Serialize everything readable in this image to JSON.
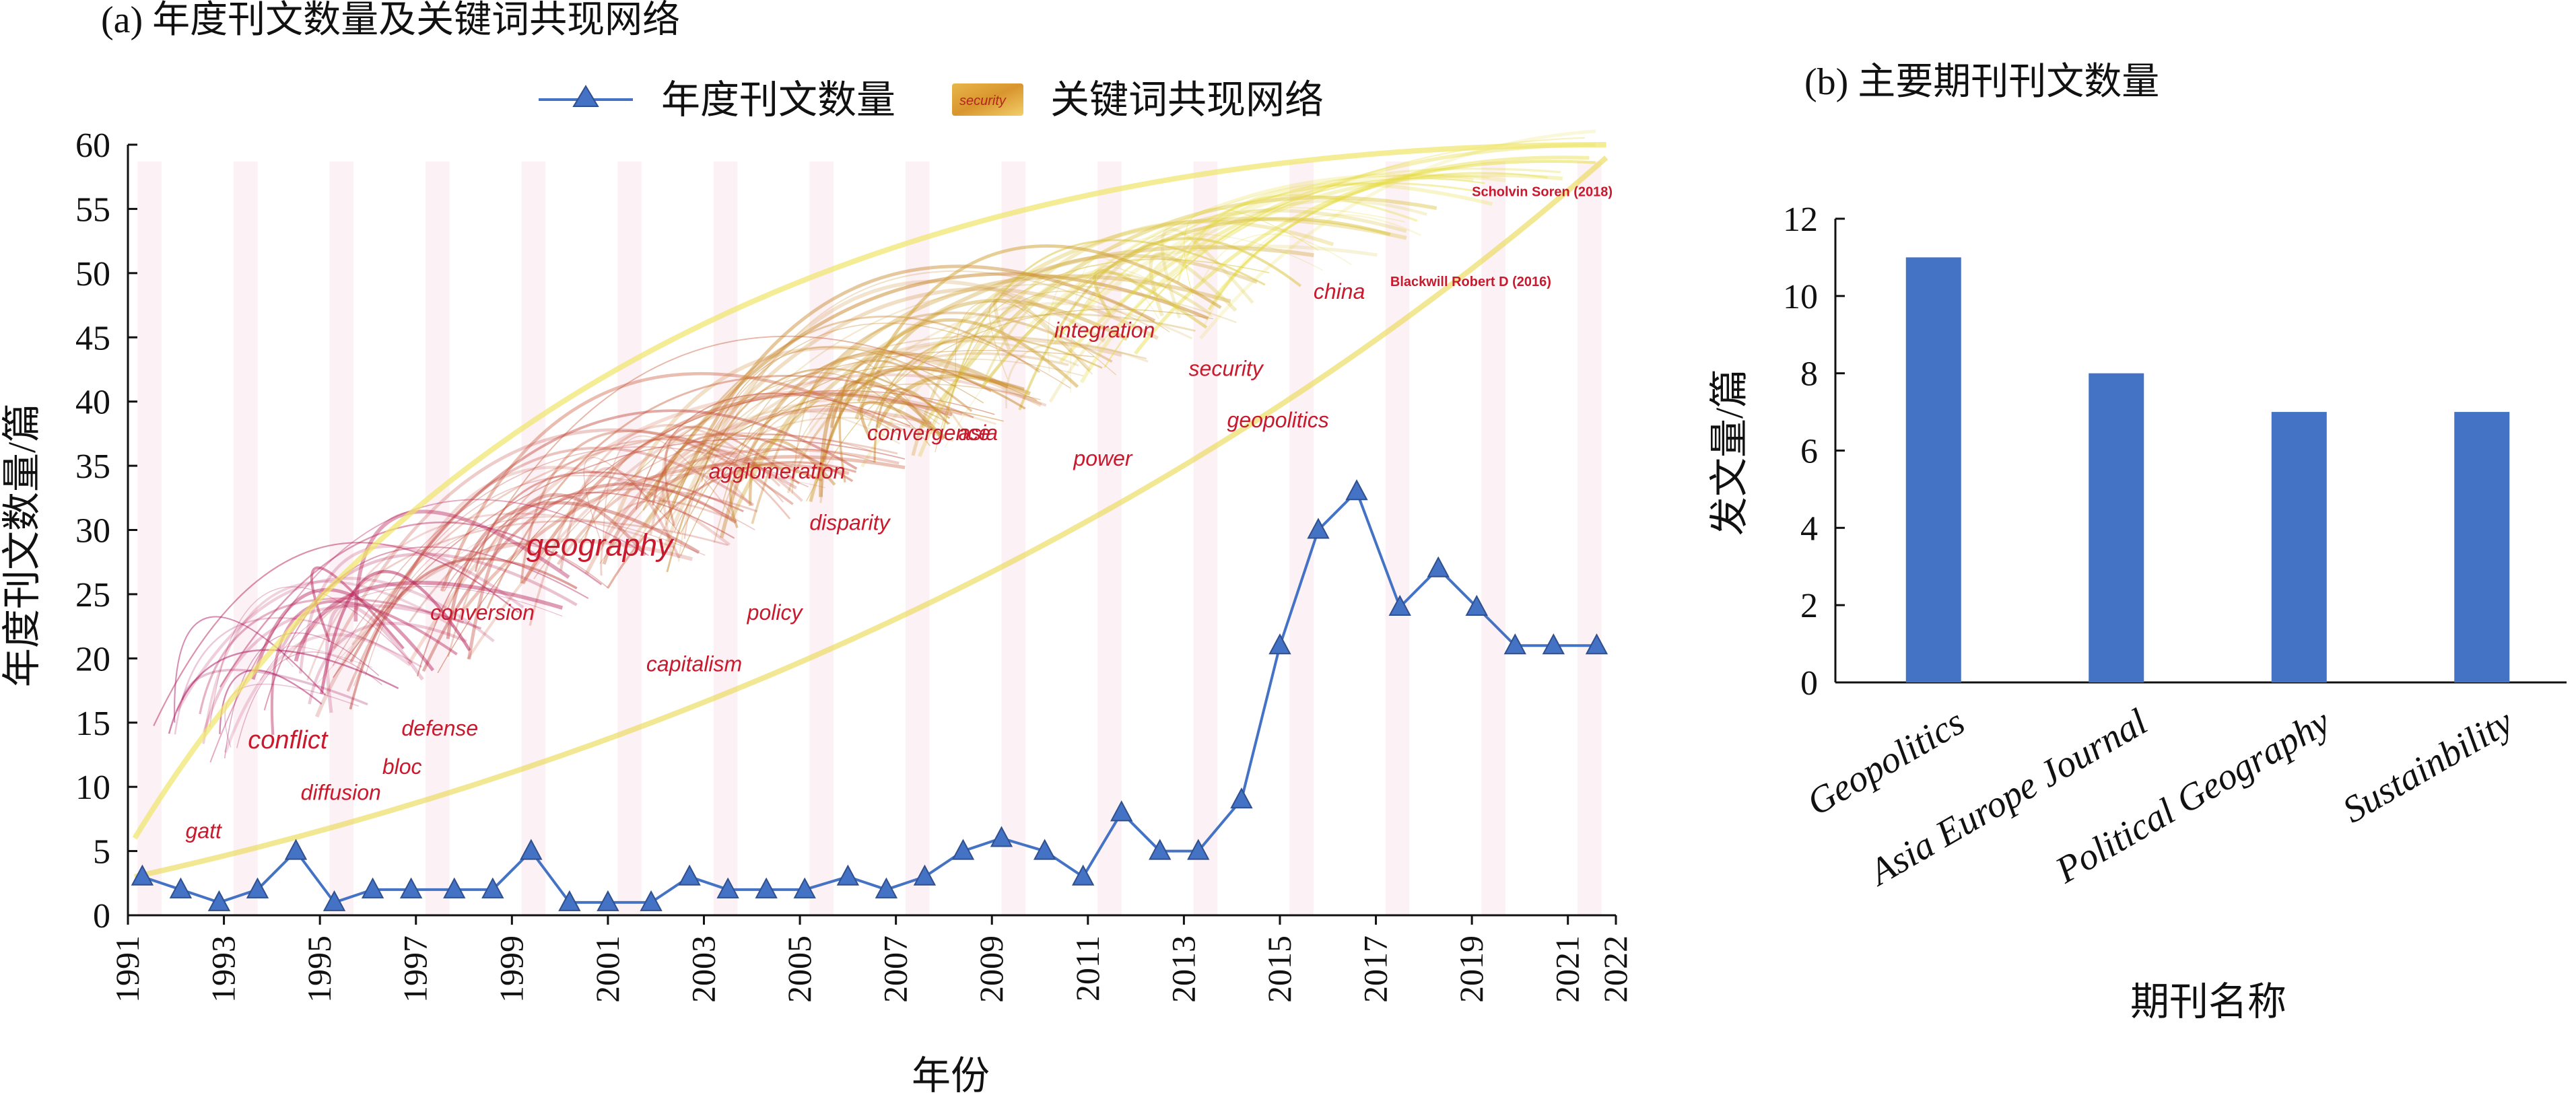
{
  "chart_data": [
    {
      "panel": "a",
      "type": "line",
      "title": "(a) 年度刊文数量及关键词共现网络",
      "xlabel": "年份",
      "ylabel": "年度刊文数量/篇",
      "x_ticks": [
        "1991",
        "1993",
        "1995",
        "1997",
        "1999",
        "2001",
        "2003",
        "2005",
        "2007",
        "2009",
        "2011",
        "2013",
        "2015",
        "2017",
        "2019",
        "2021",
        "2022"
      ],
      "xlim": [
        1991,
        2022
      ],
      "ylim": [
        0,
        60
      ],
      "y_ticks": [
        "0",
        "5",
        "10",
        "15",
        "20",
        "25",
        "30",
        "35",
        "40",
        "45",
        "50",
        "55",
        "60"
      ],
      "legend_position": "top-center",
      "legend": [
        {
          "label": "年度刊文数量",
          "marker": "triangle-line",
          "color": "#4472c4"
        },
        {
          "label": "关键词共现网络",
          "marker": "gradient-swatch",
          "sample_text": "security"
        }
      ],
      "series": [
        {
          "name": "年度刊文数量",
          "color": "#4472c4",
          "x": [
            1991.3,
            1992.1,
            1992.9,
            1993.7,
            1994.5,
            1995.3,
            1996.1,
            1996.9,
            1997.8,
            1998.6,
            1999.4,
            2000.2,
            2001.0,
            2001.9,
            2002.7,
            2003.5,
            2004.3,
            2005.1,
            2006.0,
            2006.8,
            2007.6,
            2008.4,
            2009.2,
            2010.1,
            2010.9,
            2011.7,
            2012.5,
            2013.3,
            2014.2,
            2015.0,
            2015.8,
            2016.6,
            2017.5,
            2018.3,
            2019.1,
            2019.9,
            2020.7,
            2021.6
          ],
          "y": [
            3,
            2,
            1,
            2,
            5,
            1,
            2,
            2,
            2,
            2,
            5,
            1,
            1,
            1,
            3,
            2,
            2,
            2,
            3,
            2,
            3,
            5,
            6,
            5,
            3,
            8,
            5,
            5,
            9,
            21,
            30,
            33,
            24,
            27,
            24,
            21,
            21,
            21
          ]
        }
      ],
      "network_keywords": [
        {
          "text": "gatt",
          "year": 1992.2,
          "value": 6
        },
        {
          "text": "conflict",
          "year": 1993.5,
          "value": 13
        },
        {
          "text": "diffusion",
          "year": 1994.6,
          "value": 9
        },
        {
          "text": "bloc",
          "year": 1996.3,
          "value": 11
        },
        {
          "text": "defense",
          "year": 1996.7,
          "value": 14
        },
        {
          "text": "conversion",
          "year": 1997.3,
          "value": 23
        },
        {
          "text": "geography",
          "year": 1999.3,
          "value": 28
        },
        {
          "text": "capitalism",
          "year": 2001.8,
          "value": 19
        },
        {
          "text": "policy",
          "year": 2003.9,
          "value": 23
        },
        {
          "text": "agglomeration",
          "year": 2003.1,
          "value": 34
        },
        {
          "text": "disparity",
          "year": 2005.2,
          "value": 30
        },
        {
          "text": "convergence",
          "year": 2006.4,
          "value": 37
        },
        {
          "text": "asia",
          "year": 2008.3,
          "value": 37
        },
        {
          "text": "power",
          "year": 2010.7,
          "value": 35
        },
        {
          "text": "integration",
          "year": 2010.3,
          "value": 45
        },
        {
          "text": "security",
          "year": 2013.1,
          "value": 42
        },
        {
          "text": "geopolitics",
          "year": 2013.9,
          "value": 38
        },
        {
          "text": "china",
          "year": 2015.7,
          "value": 48
        },
        {
          "text": "Blackwill Robert D (2016)",
          "year": 2017.3,
          "value": 49
        },
        {
          "text": "Scholvin Soren (2018)",
          "year": 2019.0,
          "value": 56
        }
      ]
    },
    {
      "panel": "b",
      "type": "bar",
      "title": "(b) 主要期刊刊文数量",
      "xlabel": "期刊名称",
      "ylabel": "发文量/篇",
      "ylim": [
        0,
        12
      ],
      "y_ticks": [
        "0",
        "2",
        "4",
        "6",
        "8",
        "10",
        "12"
      ],
      "categories": [
        "Geopolitics",
        "Asia Europe Journal",
        "Political Geography",
        "Sustainbility"
      ],
      "values": [
        11,
        8,
        7,
        7
      ],
      "color": "#4472c4"
    }
  ]
}
